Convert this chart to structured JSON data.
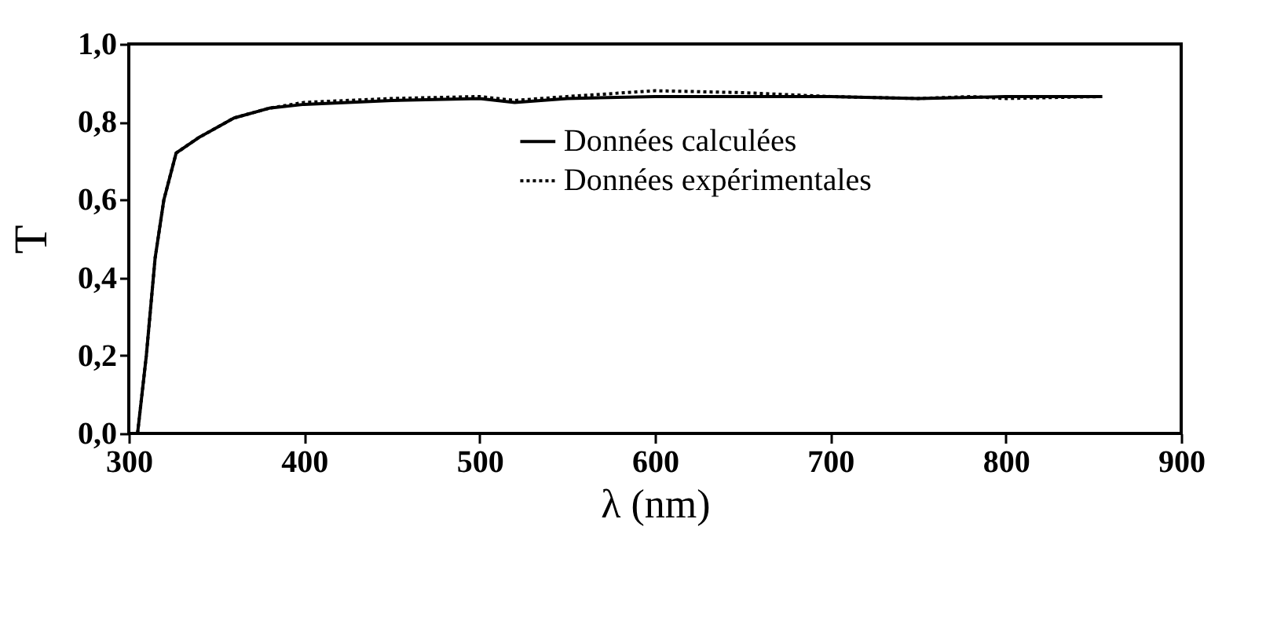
{
  "chart_data": {
    "type": "line",
    "xlabel": "λ (nm)",
    "ylabel": "T",
    "xlim": [
      300,
      900
    ],
    "xticks": [
      300,
      400,
      500,
      600,
      700,
      800,
      900
    ],
    "ylim": [
      0,
      1
    ],
    "yticks": [
      {
        "value": 0,
        "label": "0,0"
      },
      {
        "value": 0.2,
        "label": "0,2"
      },
      {
        "value": 0.4,
        "label": "0,4"
      },
      {
        "value": 0.6,
        "label": "0,6"
      },
      {
        "value": 0.8,
        "label": "0,8"
      },
      {
        "value": 1,
        "label": "1,0"
      }
    ],
    "grid": false,
    "legend": "right",
    "marker": "none",
    "series": [
      {
        "name": "Données calculées",
        "color": "#000000",
        "line_style": "solid",
        "x": [
          305,
          310,
          315,
          320,
          327,
          340,
          360,
          380,
          400,
          450,
          500,
          520,
          550,
          600,
          700,
          750,
          800,
          855
        ],
        "values": [
          0,
          0.2,
          0.45,
          0.6,
          0.72,
          0.76,
          0.81,
          0.835,
          0.845,
          0.855,
          0.86,
          0.85,
          0.86,
          0.865,
          0.865,
          0.86,
          0.865,
          0.865
        ]
      },
      {
        "name": "Données expérimentales",
        "color": "#000000",
        "line_style": "dotted",
        "x": [
          305,
          310,
          315,
          320,
          327,
          340,
          360,
          380,
          400,
          450,
          500,
          520,
          550,
          600,
          650,
          700,
          750,
          780,
          800,
          855
        ],
        "values": [
          0,
          0.2,
          0.45,
          0.6,
          0.72,
          0.76,
          0.81,
          0.835,
          0.85,
          0.86,
          0.865,
          0.855,
          0.865,
          0.88,
          0.875,
          0.865,
          0.86,
          0.865,
          0.86,
          0.865
        ]
      }
    ]
  }
}
